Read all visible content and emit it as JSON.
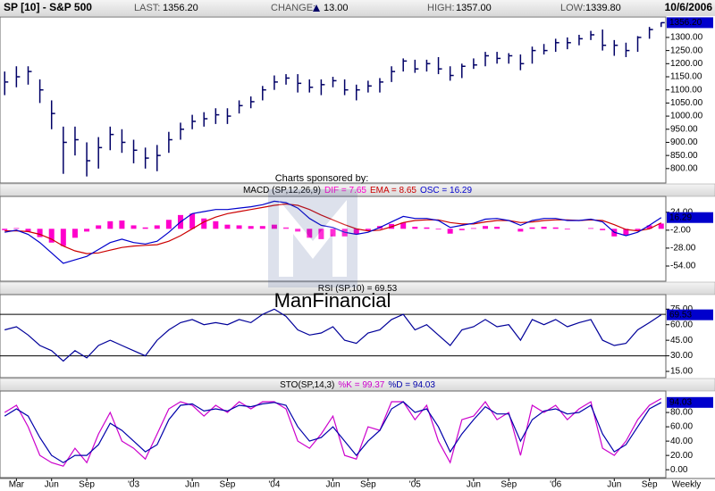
{
  "header": {
    "title": "SP [10] - S&P 500",
    "last": {
      "label": "LAST:",
      "value": "1356.20"
    },
    "change": {
      "label": "CHANGE:",
      "value": "13.00"
    },
    "high": {
      "label": "HIGH:",
      "value": "1357.00"
    },
    "low": {
      "label": "LOW:",
      "value": "1339.80"
    },
    "date": "10/6/2006"
  },
  "watermark": {
    "sponsor": "Charts sponsored by:",
    "logo": "ManFinancial"
  },
  "x_axis": {
    "xlim": [
      -0.4,
      56.4
    ],
    "xticks": [
      {
        "value": 1,
        "label": "Mar"
      },
      {
        "value": 4,
        "label": "Jun"
      },
      {
        "value": 7,
        "label": "Sep"
      },
      {
        "value": 11,
        "label": "'03"
      },
      {
        "value": 16,
        "label": "Jun"
      },
      {
        "value": 19,
        "label": "Sep"
      },
      {
        "value": 23,
        "label": "'04"
      },
      {
        "value": 28,
        "label": "Jun"
      },
      {
        "value": 31,
        "label": "Sep"
      },
      {
        "value": 35,
        "label": "'05"
      },
      {
        "value": 40,
        "label": "Jun"
      },
      {
        "value": 43,
        "label": "Sep"
      },
      {
        "value": 47,
        "label": "'06"
      },
      {
        "value": 52,
        "label": "Jun"
      },
      {
        "value": 55,
        "label": "Sep"
      }
    ],
    "label": "Weekly"
  },
  "chart_data": [
    {
      "type": "hlc",
      "color": "#000066",
      "last_label": "1356.20",
      "label_color": "#0000cc",
      "ylim": [
        745,
        1378
      ],
      "yticks": [
        {
          "value": 800,
          "label": "800.00"
        },
        {
          "value": 850,
          "label": "850.00"
        },
        {
          "value": 900,
          "label": "900.00"
        },
        {
          "value": 950,
          "label": "950.00"
        },
        {
          "value": 1000,
          "label": "1000.00"
        },
        {
          "value": 1050,
          "label": "1050.00"
        },
        {
          "value": 1100,
          "label": "1100.00"
        },
        {
          "value": 1150,
          "label": "1150.00"
        },
        {
          "value": 1200,
          "label": "1200.00"
        },
        {
          "value": 1250,
          "label": "1250.00"
        },
        {
          "value": 1300,
          "label": "1300.00"
        }
      ],
      "high": [
        1170,
        1190,
        1190,
        1140,
        1060,
        960,
        960,
        900,
        920,
        960,
        950,
        910,
        880,
        890,
        940,
        975,
        1005,
        1015,
        1030,
        1030,
        1060,
        1075,
        1115,
        1155,
        1160,
        1160,
        1140,
        1140,
        1150,
        1140,
        1120,
        1135,
        1145,
        1190,
        1220,
        1215,
        1215,
        1225,
        1190,
        1200,
        1220,
        1245,
        1245,
        1240,
        1235,
        1265,
        1275,
        1295,
        1300,
        1310,
        1325,
        1330,
        1290,
        1280,
        1305,
        1340,
        1357
      ],
      "low": [
        1080,
        1110,
        1120,
        1050,
        950,
        780,
        850,
        770,
        800,
        870,
        860,
        820,
        800,
        790,
        860,
        910,
        950,
        960,
        970,
        970,
        1010,
        1030,
        1060,
        1100,
        1120,
        1090,
        1090,
        1080,
        1110,
        1080,
        1060,
        1090,
        1090,
        1130,
        1170,
        1165,
        1170,
        1160,
        1135,
        1145,
        1180,
        1190,
        1200,
        1200,
        1175,
        1200,
        1235,
        1245,
        1255,
        1270,
        1290,
        1250,
        1230,
        1225,
        1245,
        1295,
        1339.8
      ],
      "close": [
        1130,
        1150,
        1170,
        1100,
        1010,
        900,
        910,
        830,
        880,
        930,
        900,
        870,
        840,
        850,
        910,
        950,
        980,
        990,
        1005,
        1000,
        1040,
        1055,
        1100,
        1130,
        1145,
        1125,
        1110,
        1120,
        1135,
        1100,
        1100,
        1115,
        1130,
        1170,
        1210,
        1180,
        1200,
        1180,
        1155,
        1190,
        1195,
        1230,
        1220,
        1230,
        1200,
        1250,
        1250,
        1280,
        1280,
        1295,
        1310,
        1270,
        1270,
        1250,
        1300,
        1330,
        1356.2
      ]
    },
    {
      "type": "line",
      "title": "MACD (SP,12,26,9)",
      "ylim": [
        -76,
        47
      ],
      "yticks": [
        {
          "value": 24,
          "label": "24.00"
        },
        {
          "value": -2,
          "label": "-2.00"
        },
        {
          "value": -28,
          "label": "-28.00"
        },
        {
          "value": -54,
          "label": "-54.00"
        }
      ],
      "series": [
        {
          "name": "DIF = 7.65",
          "type": "bar",
          "color": "#ff00cc",
          "values": [
            -2,
            1,
            -4,
            -12,
            -20,
            -25,
            -13,
            -4,
            5,
            11,
            12,
            5,
            2,
            5,
            13,
            20,
            22,
            15,
            11,
            6,
            5,
            4,
            4,
            6,
            2,
            -4,
            -13,
            -15,
            -11,
            -11,
            -8,
            -2,
            4,
            7,
            9,
            3,
            2,
            -1,
            -7,
            -2,
            1,
            4,
            3,
            0,
            -4,
            2,
            3,
            2,
            -1,
            0,
            1,
            -2,
            -11,
            -9,
            -2,
            5,
            7.65
          ]
        },
        {
          "name": "EMA = 8.65",
          "color": "#cc0000",
          "values": [
            -3,
            -3,
            -4,
            -8,
            -15,
            -25,
            -32,
            -36,
            -35,
            -31,
            -27,
            -25,
            -24,
            -23,
            -18,
            -10,
            0,
            10,
            17,
            22,
            25,
            28,
            31,
            34,
            36,
            34,
            28,
            20,
            13,
            6,
            0,
            -3,
            -2,
            3,
            9,
            12,
            13,
            13,
            9,
            7,
            7,
            10,
            12,
            12,
            9,
            10,
            12,
            13,
            13,
            12,
            13,
            12,
            6,
            -1,
            -3,
            0,
            8.65
          ]
        },
        {
          "name": "OSC = 16.29",
          "color": "#0000cc",
          "last_label": "16.29",
          "values": [
            -5,
            -2,
            -8,
            -20,
            -35,
            -50,
            -45,
            -40,
            -30,
            -20,
            -15,
            -20,
            -22,
            -18,
            -5,
            10,
            22,
            25,
            28,
            28,
            30,
            32,
            35,
            40,
            38,
            30,
            15,
            5,
            2,
            -5,
            -8,
            -5,
            2,
            10,
            18,
            15,
            15,
            12,
            2,
            5,
            8,
            14,
            15,
            12,
            5,
            12,
            15,
            15,
            12,
            12,
            14,
            10,
            -5,
            -10,
            -5,
            5,
            16.29
          ]
        }
      ]
    },
    {
      "type": "line",
      "title": "RSI (SP,10) = 69.53",
      "ylim": [
        9,
        89
      ],
      "levels": [
        30,
        70
      ],
      "yticks": [
        {
          "value": 15,
          "label": "15.00"
        },
        {
          "value": 30,
          "label": "30.00"
        },
        {
          "value": 45,
          "label": "45.00"
        },
        {
          "value": 60,
          "label": "60.00"
        },
        {
          "value": 75,
          "label": "75.00"
        }
      ],
      "series": [
        {
          "color": "#000099",
          "last_label": "69.53",
          "values": [
            55,
            58,
            50,
            40,
            35,
            25,
            35,
            28,
            40,
            45,
            40,
            35,
            30,
            45,
            55,
            62,
            65,
            60,
            62,
            60,
            65,
            62,
            70,
            75,
            68,
            55,
            50,
            52,
            58,
            45,
            42,
            52,
            55,
            65,
            70,
            55,
            60,
            50,
            40,
            55,
            58,
            65,
            58,
            60,
            45,
            65,
            60,
            65,
            58,
            62,
            65,
            45,
            40,
            42,
            55,
            62,
            69.53
          ]
        }
      ]
    },
    {
      "type": "line",
      "title": "STO(SP,14,3)",
      "ylim": [
        -11,
        110
      ],
      "yticks": [
        {
          "value": 0,
          "label": "0.00"
        },
        {
          "value": 20,
          "label": "20.00"
        },
        {
          "value": 40,
          "label": "40.00"
        },
        {
          "value": 60,
          "label": "60.00"
        },
        {
          "value": 80,
          "label": "80.00"
        }
      ],
      "series": [
        {
          "name": "%K = 99.37",
          "color": "#cc00cc",
          "values": [
            80,
            90,
            60,
            20,
            10,
            5,
            30,
            10,
            50,
            80,
            40,
            30,
            15,
            50,
            85,
            95,
            90,
            75,
            90,
            80,
            95,
            85,
            95,
            95,
            85,
            40,
            30,
            50,
            75,
            20,
            15,
            60,
            55,
            95,
            95,
            70,
            90,
            40,
            10,
            70,
            75,
            95,
            70,
            80,
            20,
            90,
            80,
            90,
            70,
            85,
            95,
            30,
            20,
            40,
            70,
            90,
            99.37
          ]
        },
        {
          "name": "%D = 94.03",
          "color": "#0000aa",
          "last_label": "94.03",
          "values": [
            75,
            85,
            75,
            45,
            20,
            10,
            20,
            20,
            35,
            65,
            55,
            40,
            25,
            35,
            70,
            90,
            92,
            82,
            85,
            82,
            90,
            88,
            92,
            94,
            90,
            60,
            40,
            45,
            60,
            40,
            20,
            40,
            55,
            85,
            95,
            80,
            85,
            60,
            25,
            50,
            70,
            88,
            78,
            78,
            40,
            70,
            82,
            85,
            78,
            80,
            90,
            50,
            25,
            35,
            60,
            85,
            94.03
          ]
        }
      ]
    }
  ]
}
